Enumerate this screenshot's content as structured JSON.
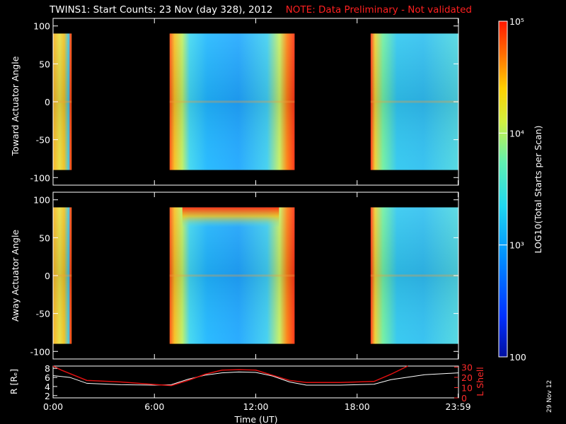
{
  "title": "TWINS1: Start Counts: 23 Nov (day 328), 2012",
  "note": "NOTE: Data Preliminary - Not validated",
  "date_stamp": "29 Nov 12",
  "colors": {
    "background": "#000000",
    "axes": "#ffffff",
    "note": "#ff2020",
    "r_line": "#ffffff",
    "lshell_line": "#e01010"
  },
  "chart_data": [
    {
      "type": "heatmap",
      "ylabel": "Toward Actuator Angle",
      "ylim": [
        -110,
        110
      ],
      "yticks": [
        100,
        50,
        0,
        -50,
        -100
      ],
      "data_y_range": [
        -90,
        90
      ],
      "xlim": [
        0,
        24
      ],
      "data_segments_hours": [
        [
          0,
          1.1
        ],
        [
          6.9,
          14.3
        ],
        [
          18.8,
          24
        ]
      ]
    },
    {
      "type": "heatmap",
      "ylabel": "Away Actuator Angle",
      "ylim": [
        -110,
        110
      ],
      "yticks": [
        100,
        50,
        0,
        -50,
        -100
      ],
      "data_y_range": [
        -90,
        90
      ],
      "xlim": [
        0,
        24
      ],
      "data_segments_hours": [
        [
          0,
          1.1
        ],
        [
          6.9,
          14.3
        ],
        [
          18.8,
          24
        ]
      ]
    },
    {
      "type": "colorbar",
      "label": "LOG10(Total Starts per Scan)",
      "scale": "log",
      "range": [
        100,
        100000
      ],
      "ticks": [
        {
          "value": 100,
          "label": "100"
        },
        {
          "value": 1000,
          "label": "10³"
        },
        {
          "value": 10000,
          "label": "10⁴"
        },
        {
          "value": 100000,
          "label": "10⁵"
        }
      ]
    },
    {
      "type": "line",
      "xlabel": "Time (UT)",
      "xticks": [
        "0:00",
        "6:00",
        "12:00",
        "18:00",
        "23:59"
      ],
      "xtick_hours": [
        0,
        6,
        12,
        18,
        23.98
      ],
      "ylabel_left": "R [Rₑ]",
      "yticks_left": [
        2,
        4,
        6,
        8
      ],
      "ylim_left": [
        1.5,
        8.5
      ],
      "ylabel_right": "L Shell",
      "yticks_right": [
        0,
        10,
        20,
        30
      ],
      "ylim_right": [
        0,
        31
      ],
      "series": [
        {
          "name": "R [Rₑ]",
          "axis": "left",
          "x": [
            0,
            1,
            2,
            4,
            6,
            7,
            8,
            9,
            10,
            11,
            12,
            13,
            14,
            15,
            17,
            19,
            20,
            22,
            24
          ],
          "y": [
            6.4,
            6.0,
            4.7,
            4.4,
            4.3,
            4.4,
            5.6,
            6.5,
            7.0,
            7.2,
            7.1,
            6.3,
            5.0,
            4.3,
            4.3,
            4.5,
            5.5,
            6.6,
            7.0
          ]
        },
        {
          "name": "L Shell",
          "axis": "right",
          "x": [
            0,
            0.5,
            2,
            4,
            6,
            7,
            8,
            9,
            10,
            11,
            12,
            13,
            14,
            15,
            17,
            19,
            20,
            21
          ],
          "y": [
            31,
            27,
            17,
            15.5,
            13,
            12,
            17,
            23,
            27,
            27.5,
            27,
            22,
            17,
            15,
            15,
            16,
            23,
            31
          ]
        }
      ]
    }
  ]
}
